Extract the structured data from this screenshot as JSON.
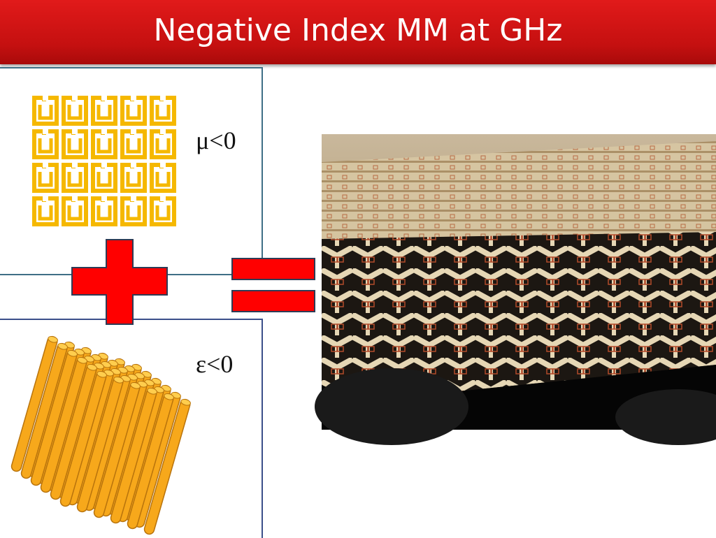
{
  "slide": {
    "title": "Negative Index MM at GHz"
  },
  "panels": {
    "magnetic": {
      "condition_label": "μ<0",
      "grid_rows": 4,
      "grid_cols": 5
    },
    "electric": {
      "condition_label": "ε<0"
    }
  },
  "operators": [
    "plus-sign",
    "equals-sign"
  ],
  "colors": {
    "title_bar": "#cc1414",
    "title_text": "#ffffff",
    "ring_gold": "#f5b800",
    "operator_red": "#ff0000",
    "rod_orange": "#f7a81b",
    "panel_border": "#3f6f86"
  }
}
